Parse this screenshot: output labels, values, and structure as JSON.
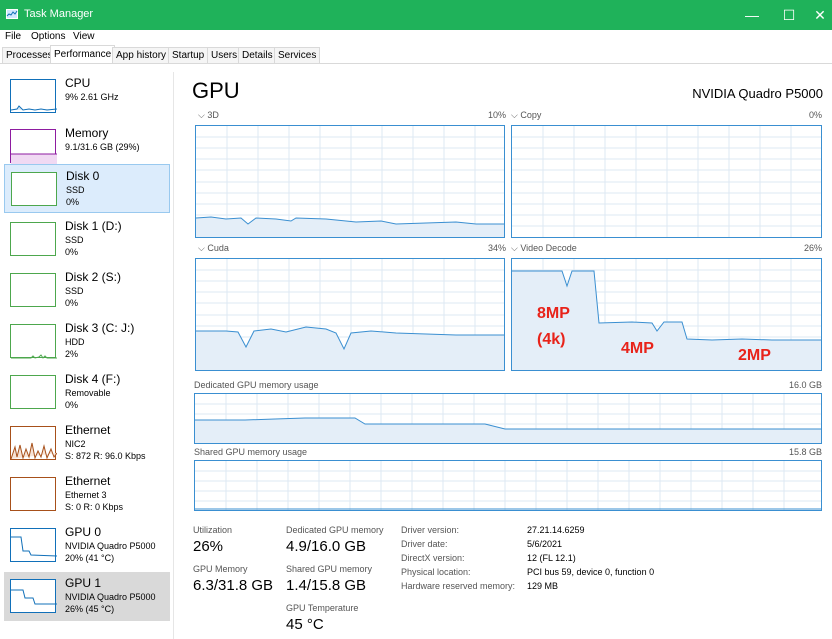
{
  "window": {
    "title": "Task Manager",
    "minimize": "—",
    "maximize": "☐",
    "close": "✕"
  },
  "menu": [
    "File",
    "Options",
    "View"
  ],
  "tabs": [
    "Processes",
    "Performance",
    "App history",
    "Startup",
    "Users",
    "Details",
    "Services"
  ],
  "active_tab": "Performance",
  "sidebar": [
    {
      "name": "CPU",
      "sub1": "9%  2.61 GHz",
      "sub2": "",
      "color": "#1170b9"
    },
    {
      "name": "Memory",
      "sub1": "9.1/31.6 GB (29%)",
      "sub2": "",
      "color": "#8e1ba0"
    },
    {
      "name": "Disk 0",
      "sub1": "SSD",
      "sub2": "0%",
      "color": "#4da74d"
    },
    {
      "name": "Disk 1 (D:)",
      "sub1": "SSD",
      "sub2": "0%",
      "color": "#4da74d"
    },
    {
      "name": "Disk 2 (S:)",
      "sub1": "SSD",
      "sub2": "0%",
      "color": "#4da74d"
    },
    {
      "name": "Disk 3 (C: J:)",
      "sub1": "HDD",
      "sub2": "2%",
      "color": "#4da74d"
    },
    {
      "name": "Disk 4 (F:)",
      "sub1": "Removable",
      "sub2": "0%",
      "color": "#4da74d"
    },
    {
      "name": "Ethernet",
      "sub1": "NIC2",
      "sub2": "S: 872  R: 96.0 Kbps",
      "color": "#a7501a"
    },
    {
      "name": "Ethernet",
      "sub1": "Ethernet 3",
      "sub2": "S: 0  R: 0 Kbps",
      "color": "#a7501a"
    },
    {
      "name": "GPU 0",
      "sub1": "NVIDIA Quadro P5000",
      "sub2": "20%  (41 °C)",
      "color": "#1170b9"
    },
    {
      "name": "GPU 1",
      "sub1": "NVIDIA Quadro P5000",
      "sub2": "26%  (45 °C)",
      "color": "#1170b9"
    }
  ],
  "main": {
    "title": "GPU",
    "gpu_name": "NVIDIA Quadro P5000",
    "graphs": [
      {
        "label": "3D",
        "pct": "10%"
      },
      {
        "label": "Copy",
        "pct": "0%"
      },
      {
        "label": "Cuda",
        "pct": "34%"
      },
      {
        "label": "Video Decode",
        "pct": "26%"
      }
    ],
    "dedicated_label": "Dedicated GPU memory usage",
    "dedicated_max": "16.0 GB",
    "shared_label": "Shared GPU memory usage",
    "shared_max": "15.8 GB",
    "annotations": [
      "8MP",
      "(4k)",
      "4MP",
      "2MP"
    ],
    "annotation_color": "#e8231a",
    "accent_color": "#3a8fd1"
  },
  "stats": {
    "utilization_label": "Utilization",
    "utilization_value": "26%",
    "gpu_memory_label": "GPU Memory",
    "gpu_memory_value": "6.3/31.8 GB",
    "dedicated_label": "Dedicated GPU memory",
    "dedicated_value": "4.9/16.0 GB",
    "shared_label": "Shared GPU memory",
    "shared_value": "1.4/15.8 GB",
    "temp_label": "GPU Temperature",
    "temp_value": "45 °C"
  },
  "info": [
    {
      "key": "Driver version:",
      "value": "27.21.14.6259"
    },
    {
      "key": "Driver date:",
      "value": "5/6/2021"
    },
    {
      "key": "DirectX version:",
      "value": "12 (FL 12.1)"
    },
    {
      "key": "Physical location:",
      "value": "PCI bus 59, device 0, function 0"
    },
    {
      "key": "Hardware reserved memory:",
      "value": "129 MB"
    }
  ]
}
